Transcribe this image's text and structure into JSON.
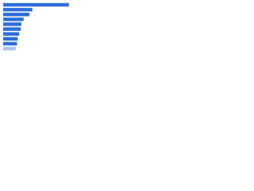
{
  "chart_data": {
    "type": "bar",
    "orientation": "horizontal",
    "categories": [
      null,
      null,
      null,
      null,
      null,
      null,
      null,
      null,
      null,
      null
    ],
    "values": [
      90,
      40,
      36,
      28,
      25,
      24,
      22,
      20,
      19,
      17
    ],
    "colors": [
      "#2f6ed8",
      "#2f6ed8",
      "#2f6ed8",
      "#2f6ed8",
      "#2f6ed8",
      "#2f6ed8",
      "#2f6ed8",
      "#2f6ed8",
      "#2f6ed8",
      "#a9c3ee"
    ],
    "xlim": [
      0,
      100
    ]
  }
}
